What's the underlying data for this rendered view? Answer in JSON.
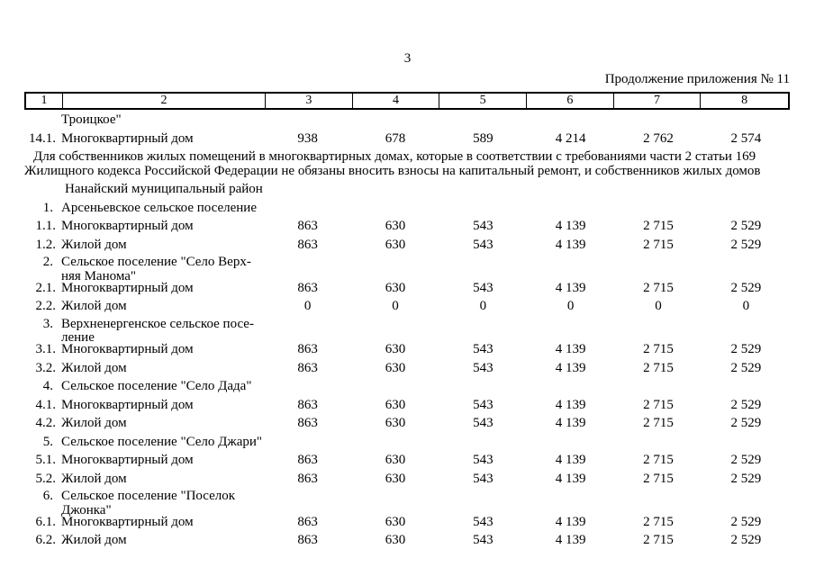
{
  "page": {
    "number": "3",
    "continuation": "Продолжение приложения № 11"
  },
  "table": {
    "columns": [
      "1",
      "2",
      "3",
      "4",
      "5",
      "6",
      "7",
      "8"
    ],
    "rows": [
      {
        "type": "carryover",
        "num": "",
        "name": "Троицкое\"",
        "values": []
      },
      {
        "type": "data",
        "num": "14.1.",
        "name": "Многоквартирный дом",
        "values": [
          "938",
          "678",
          "589",
          "4 214",
          "2 762",
          "2 574"
        ]
      },
      {
        "type": "note",
        "num": "",
        "name": "Для собственников жилых помещений в многоквартирных домах, которые в соответствии с требованиями части 2 статьи 169\nЖилищного кодекса Российской Федерации не обязаны вносить взносы на капитальный ремонт, и собственников жилых домов",
        "values": []
      },
      {
        "type": "district",
        "num": "",
        "name": "Нанайский муниципальный район",
        "values": []
      },
      {
        "type": "section",
        "num": "1.",
        "name": "Арсеньевское сельское поселение",
        "values": []
      },
      {
        "type": "data",
        "num": "1.1.",
        "name": "Многоквартирный дом",
        "values": [
          "863",
          "630",
          "543",
          "4 139",
          "2 715",
          "2 529"
        ]
      },
      {
        "type": "data",
        "num": "1.2.",
        "name": "Жилой дом",
        "values": [
          "863",
          "630",
          "543",
          "4 139",
          "2 715",
          "2 529"
        ]
      },
      {
        "type": "section",
        "num": "2.",
        "name": "Сельское поселение \"Село Верх-\nняя Манома\"",
        "values": []
      },
      {
        "type": "data",
        "num": "2.1.",
        "name": "Многоквартирный дом",
        "values": [
          "863",
          "630",
          "543",
          "4 139",
          "2 715",
          "2 529"
        ]
      },
      {
        "type": "data",
        "num": "2.2.",
        "name": "Жилой дом",
        "values": [
          "0",
          "0",
          "0",
          "0",
          "0",
          "0"
        ]
      },
      {
        "type": "section",
        "num": "3.",
        "name": "Верхненергенское сельское посе-\nление",
        "values": []
      },
      {
        "type": "data",
        "num": "3.1.",
        "name": "Многоквартирный дом",
        "values": [
          "863",
          "630",
          "543",
          "4 139",
          "2 715",
          "2 529"
        ]
      },
      {
        "type": "data",
        "num": "3.2.",
        "name": "Жилой дом",
        "values": [
          "863",
          "630",
          "543",
          "4 139",
          "2 715",
          "2 529"
        ]
      },
      {
        "type": "section",
        "num": "4.",
        "name": "Сельское поселение \"Село Дада\"",
        "values": []
      },
      {
        "type": "data",
        "num": "4.1.",
        "name": "Многоквартирный дом",
        "values": [
          "863",
          "630",
          "543",
          "4 139",
          "2 715",
          "2 529"
        ]
      },
      {
        "type": "data",
        "num": "4.2.",
        "name": "Жилой дом",
        "values": [
          "863",
          "630",
          "543",
          "4 139",
          "2 715",
          "2 529"
        ]
      },
      {
        "type": "section",
        "num": "5.",
        "name": "Сельское поселение \"Село Джари\"",
        "values": []
      },
      {
        "type": "data",
        "num": "5.1.",
        "name": "Многоквартирный дом",
        "values": [
          "863",
          "630",
          "543",
          "4 139",
          "2 715",
          "2 529"
        ]
      },
      {
        "type": "data",
        "num": "5.2.",
        "name": "Жилой дом",
        "values": [
          "863",
          "630",
          "543",
          "4 139",
          "2 715",
          "2 529"
        ]
      },
      {
        "type": "section",
        "num": "6.",
        "name": "Сельское поселение \"Поселок\nДжонка\"",
        "values": []
      },
      {
        "type": "data",
        "num": "6.1.",
        "name": "Многоквартирный дом",
        "values": [
          "863",
          "630",
          "543",
          "4 139",
          "2 715",
          "2 529"
        ]
      },
      {
        "type": "data",
        "num": "6.2.",
        "name": "Жилой дом",
        "values": [
          "863",
          "630",
          "543",
          "4 139",
          "2 715",
          "2 529"
        ]
      }
    ]
  }
}
